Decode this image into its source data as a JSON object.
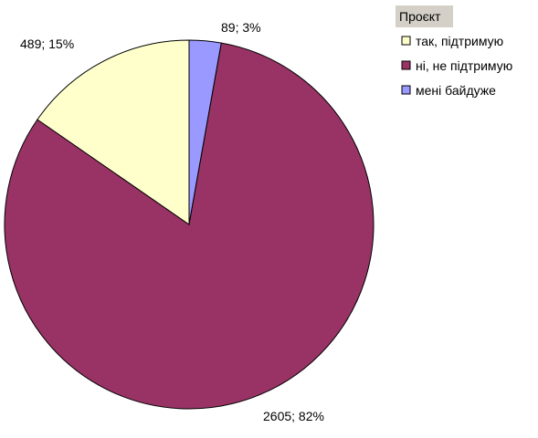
{
  "chart_data": {
    "type": "pie",
    "legend": {
      "title": "Проєкт",
      "position": "top-right"
    },
    "slices": [
      {
        "name": "так, підтримую",
        "value": 489,
        "percent": 15,
        "label": "489; 15%",
        "color": "#ffffcc"
      },
      {
        "name": "ні, не підтримую",
        "value": 2605,
        "percent": 82,
        "label": "2605; 82%",
        "color": "#993366"
      },
      {
        "name": "мені байдуже",
        "value": 89,
        "percent": 3,
        "label": "89; 3%",
        "color": "#9999ff"
      }
    ]
  }
}
